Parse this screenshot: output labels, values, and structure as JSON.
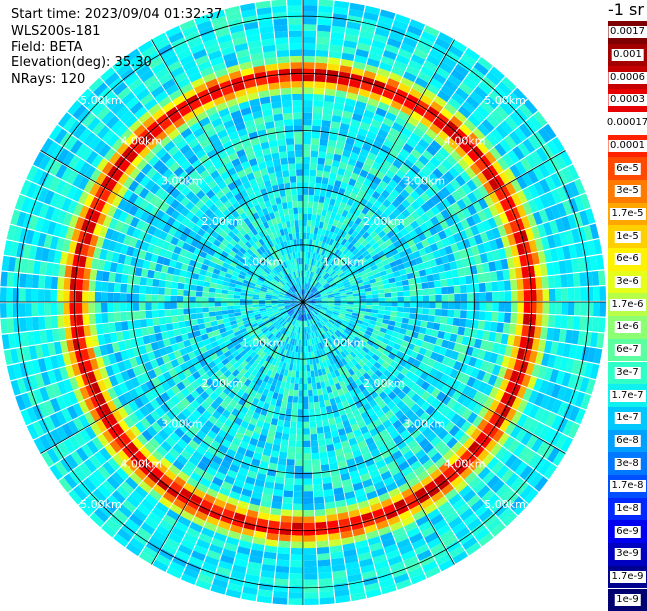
{
  "header": {
    "start_time": "Start time: 2023/09/04 01:32:37",
    "instrument": "WLS200s-181",
    "field": "Field: BETA",
    "elevation": "Elevation(deg): 35.30",
    "nrays": "NRays: 120"
  },
  "chart_data": {
    "type": "heatmap",
    "projection": "polar (PPI scan)",
    "field": "BETA",
    "n_rays": 120,
    "max_range_km": 5.3,
    "range_ring_labels": [
      "1.00km",
      "2.00km",
      "3.00km",
      "4.00km",
      "5.00km"
    ],
    "range_rings_km": [
      1,
      2,
      3,
      4,
      5
    ],
    "high_backscatter_ring_km": [
      3.8,
      4.1
    ],
    "colorbar": {
      "unit": "-1 sr",
      "scale": "log",
      "levels": [
        {
          "label": "0.0017",
          "color": "#7f0000"
        },
        {
          "label": "0.001",
          "color": "#a30000"
        },
        {
          "label": "0.0006",
          "color": "#c40000"
        },
        {
          "label": "0.0003",
          "color": "#e80000"
        },
        {
          "label": "0.00017",
          "color": "#ffffff"
        },
        {
          "label": "0.0001",
          "color": "#ff2200"
        },
        {
          "label": "6e-5",
          "color": "#ff4a00"
        },
        {
          "label": "3e-5",
          "color": "#ff7a00"
        },
        {
          "label": "1.7e-5",
          "color": "#ffa600"
        },
        {
          "label": "1e-5",
          "color": "#ffd000"
        },
        {
          "label": "6e-6",
          "color": "#fff200"
        },
        {
          "label": "3e-6",
          "color": "#e6ff1a"
        },
        {
          "label": "1.7e-6",
          "color": "#b8ff48"
        },
        {
          "label": "1e-6",
          "color": "#8cff73"
        },
        {
          "label": "6e-7",
          "color": "#5cffa0"
        },
        {
          "label": "3e-7",
          "color": "#30ffc8"
        },
        {
          "label": "1.7e-7",
          "color": "#10f0ef"
        },
        {
          "label": "1e-7",
          "color": "#00c8ff"
        },
        {
          "label": "6e-8",
          "color": "#00a0ff"
        },
        {
          "label": "3e-8",
          "color": "#0078ff"
        },
        {
          "label": "1.7e-8",
          "color": "#0050ff"
        },
        {
          "label": "1e-8",
          "color": "#0028ff"
        },
        {
          "label": "6e-9",
          "color": "#0000f0"
        },
        {
          "label": "3e-9",
          "color": "#0000c0"
        },
        {
          "label": "1.7e-9",
          "color": "#000090"
        },
        {
          "label": "1e-9",
          "color": "#000070"
        }
      ]
    }
  }
}
